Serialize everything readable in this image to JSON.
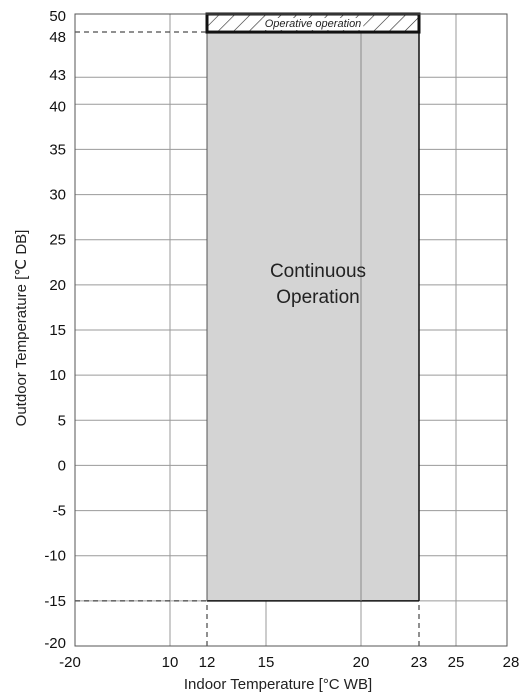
{
  "chart_data": {
    "type": "area",
    "xlabel": "Indoor Temperature [°C WB]",
    "ylabel": "Outdoor Temperature [℃ DB]",
    "xlim": [
      -20,
      28
    ],
    "ylim": [
      -20,
      50
    ],
    "x_ticks": [
      {
        "value": -20,
        "label": "-20"
      },
      {
        "value": 10,
        "label": "10"
      },
      {
        "value": 12,
        "label": "12"
      },
      {
        "value": 15,
        "label": "15"
      },
      {
        "value": 20,
        "label": "20"
      },
      {
        "value": 23,
        "label": "23"
      },
      {
        "value": 25,
        "label": "25"
      },
      {
        "value": 28,
        "label": "28"
      }
    ],
    "y_ticks": [
      {
        "value": 50,
        "label": "50"
      },
      {
        "value": 48,
        "label": "48"
      },
      {
        "value": 43,
        "label": "43"
      },
      {
        "value": 40,
        "label": "40"
      },
      {
        "value": 35,
        "label": "35"
      },
      {
        "value": 30,
        "label": "30"
      },
      {
        "value": 25,
        "label": "25"
      },
      {
        "value": 20,
        "label": "20"
      },
      {
        "value": 15,
        "label": "15"
      },
      {
        "value": 10,
        "label": "10"
      },
      {
        "value": 5,
        "label": "5"
      },
      {
        "value": 0,
        "label": "0"
      },
      {
        "value": -5,
        "label": "-5"
      },
      {
        "value": -10,
        "label": "-10"
      },
      {
        "value": -15,
        "label": "-15"
      },
      {
        "value": -20,
        "label": "-20"
      }
    ],
    "regions": [
      {
        "name": "Continuous Operation",
        "label_lines": [
          "Continuous",
          "Operation"
        ],
        "x_range": [
          12,
          23
        ],
        "y_range": [
          -15,
          48
        ],
        "fill": "#d4d4d4",
        "pattern": "solid"
      },
      {
        "name": "Operative operation",
        "label_lines": [
          "Operative operation"
        ],
        "x_range": [
          12,
          23
        ],
        "y_range": [
          48,
          50
        ],
        "fill": "#ffffff",
        "pattern": "hatched"
      }
    ],
    "guide_lines": [
      {
        "axis": "y",
        "value": 48,
        "x_from": -20,
        "x_to": 12
      },
      {
        "axis": "y",
        "value": -15,
        "x_from": -20,
        "x_to": 12
      },
      {
        "axis": "x",
        "value": 12,
        "y_from": -20,
        "y_to": -15
      },
      {
        "axis": "x",
        "value": 23,
        "y_from": -20,
        "y_to": -15
      }
    ],
    "grid": true,
    "colors": {
      "grid": "#9a9a9a",
      "region": "#d4d4d4",
      "border": "#111111"
    }
  }
}
